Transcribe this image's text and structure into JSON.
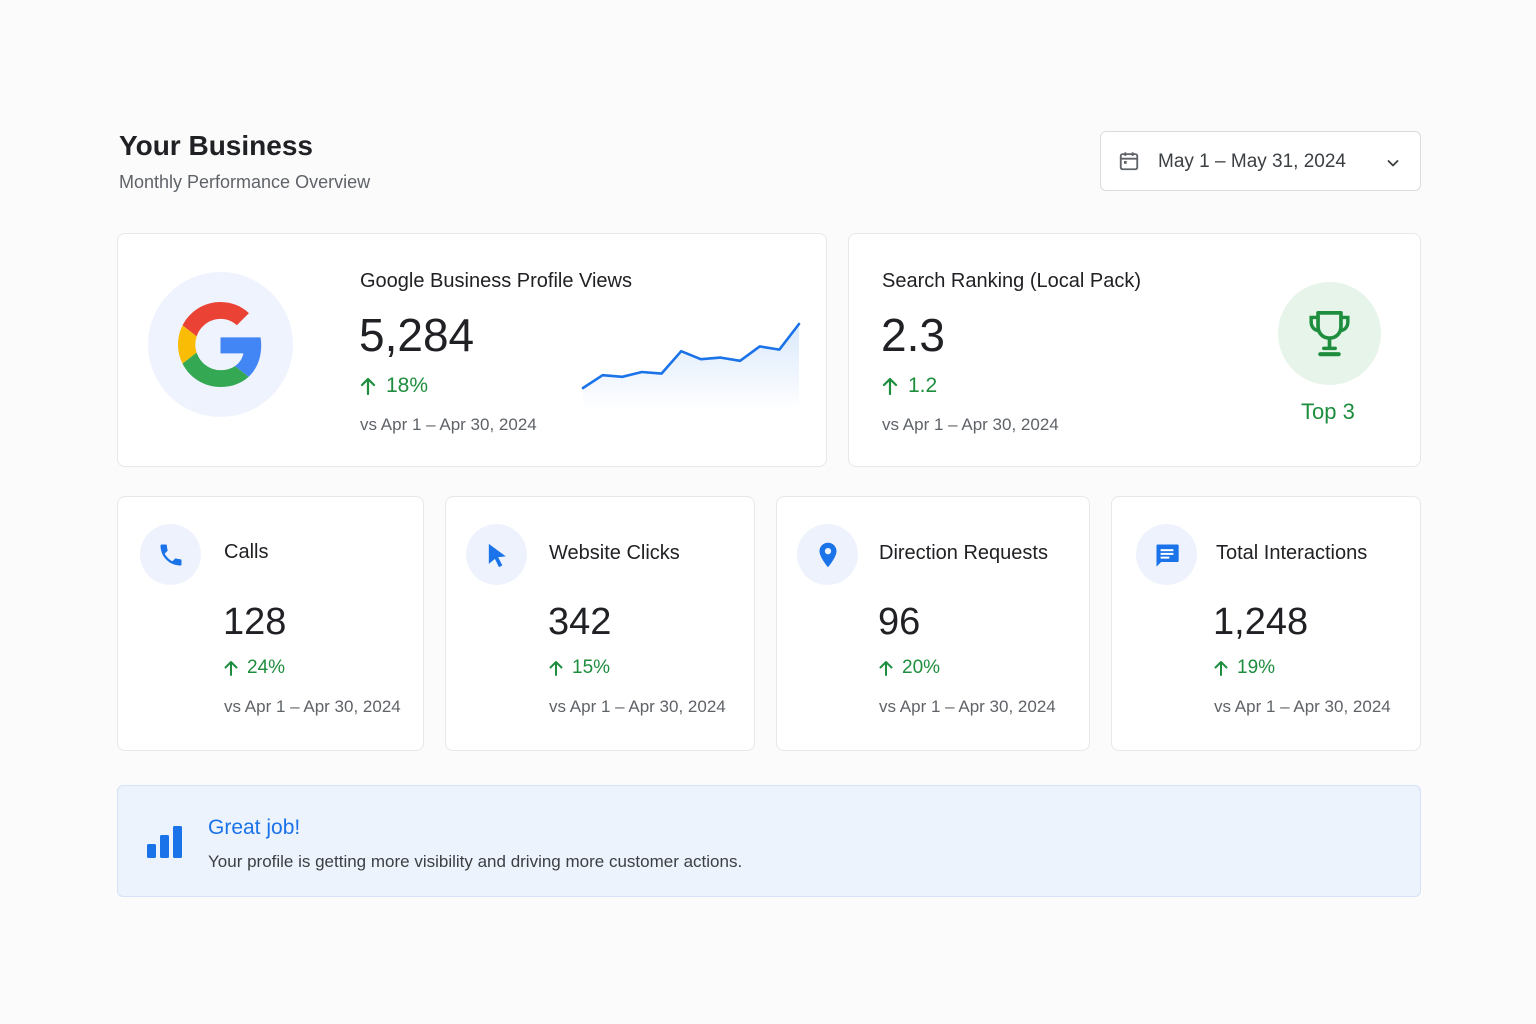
{
  "header": {
    "title": "Your Business",
    "subtitle": "Monthly Performance Overview"
  },
  "date_range": {
    "label": "May 1 – May 31, 2024",
    "icon": "calendar-icon",
    "dropdown_icon": "chevron-down-icon"
  },
  "profile_views": {
    "label": "Google Business Profile Views",
    "value": "5,284",
    "delta": "18%",
    "compare": "vs Apr 1 – Apr 30, 2024",
    "icon": "google-logo",
    "trend": [
      2,
      10,
      9,
      12,
      11,
      25,
      20,
      21,
      19,
      28,
      26,
      42
    ]
  },
  "search_ranking": {
    "label": "Search Ranking (Local Pack)",
    "value": "2.3",
    "delta": "1.2",
    "compare": "vs Apr 1 – Apr 30, 2024",
    "badge": "Top 3",
    "icon": "trophy-icon"
  },
  "metrics": [
    {
      "label": "Calls",
      "value": "128",
      "delta": "24%",
      "compare": "vs Apr 1 – Apr 30, 2024",
      "icon": "phone-icon"
    },
    {
      "label": "Website Clicks",
      "value": "342",
      "delta": "15%",
      "compare": "vs Apr 1 – Apr 30, 2024",
      "icon": "cursor-icon"
    },
    {
      "label": "Direction Requests",
      "value": "96",
      "delta": "20%",
      "compare": "vs Apr 1 – Apr 30, 2024",
      "icon": "location-pin-icon"
    },
    {
      "label": "Total Interactions",
      "value": "1,248",
      "delta": "19%",
      "compare": "vs Apr 1 – Apr 30, 2024",
      "icon": "chat-icon"
    }
  ],
  "banner": {
    "title": "Great job!",
    "text": "Your profile is getting more visibility and driving more customer actions.",
    "icon": "bar-chart-icon"
  },
  "colors": {
    "accent": "#1a73e8",
    "positive": "#1e8e3e",
    "positive_bg": "#e6f4ea",
    "icon_bg": "#edf2fc"
  }
}
